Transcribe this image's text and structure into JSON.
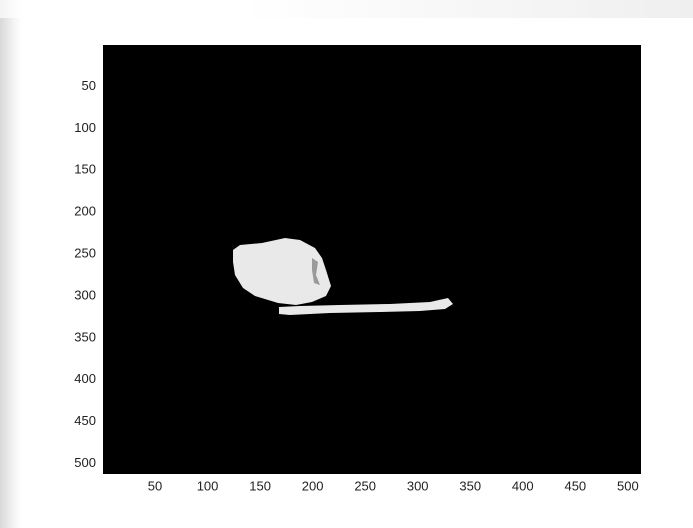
{
  "chart_data": {
    "type": "image",
    "xlim": [
      0.5,
      512.5
    ],
    "ylim": [
      0.5,
      512.5
    ],
    "y_direction": "reverse",
    "xticks": [
      50,
      100,
      150,
      200,
      250,
      300,
      350,
      400,
      450,
      500
    ],
    "yticks": [
      50,
      100,
      150,
      200,
      250,
      300,
      350,
      400,
      450,
      500
    ]
  }
}
